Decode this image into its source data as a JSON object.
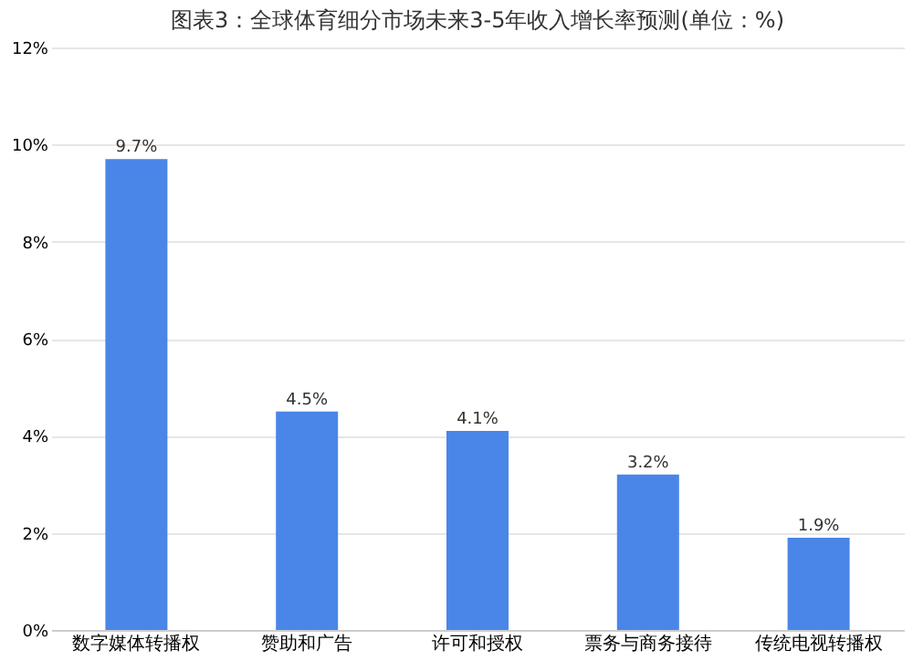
{
  "chart_data": {
    "type": "bar",
    "title": "图表3：全球体育细分市场未来3-5年收入增长率预测(单位：%)",
    "categories": [
      "数字媒体转播权",
      "赞助和广告",
      "许可和授权",
      "票务与商务接待",
      "传统电视转播权"
    ],
    "values": [
      9.7,
      4.5,
      4.1,
      3.2,
      1.9
    ],
    "color": "#4a86e8",
    "value_labels": [
      "9.7%",
      "4.5%",
      "4.1%",
      "3.2%",
      "1.9%"
    ],
    "ylim": [
      0,
      12
    ],
    "yticks": [
      {
        "value": 0,
        "label": "0%"
      },
      {
        "value": 2,
        "label": "2%"
      },
      {
        "value": 4,
        "label": "4%"
      },
      {
        "value": 6,
        "label": "6%"
      },
      {
        "value": 8,
        "label": "8%"
      },
      {
        "value": 10,
        "label": "10%"
      },
      {
        "value": 12,
        "label": "12%"
      }
    ],
    "grid": "y"
  }
}
